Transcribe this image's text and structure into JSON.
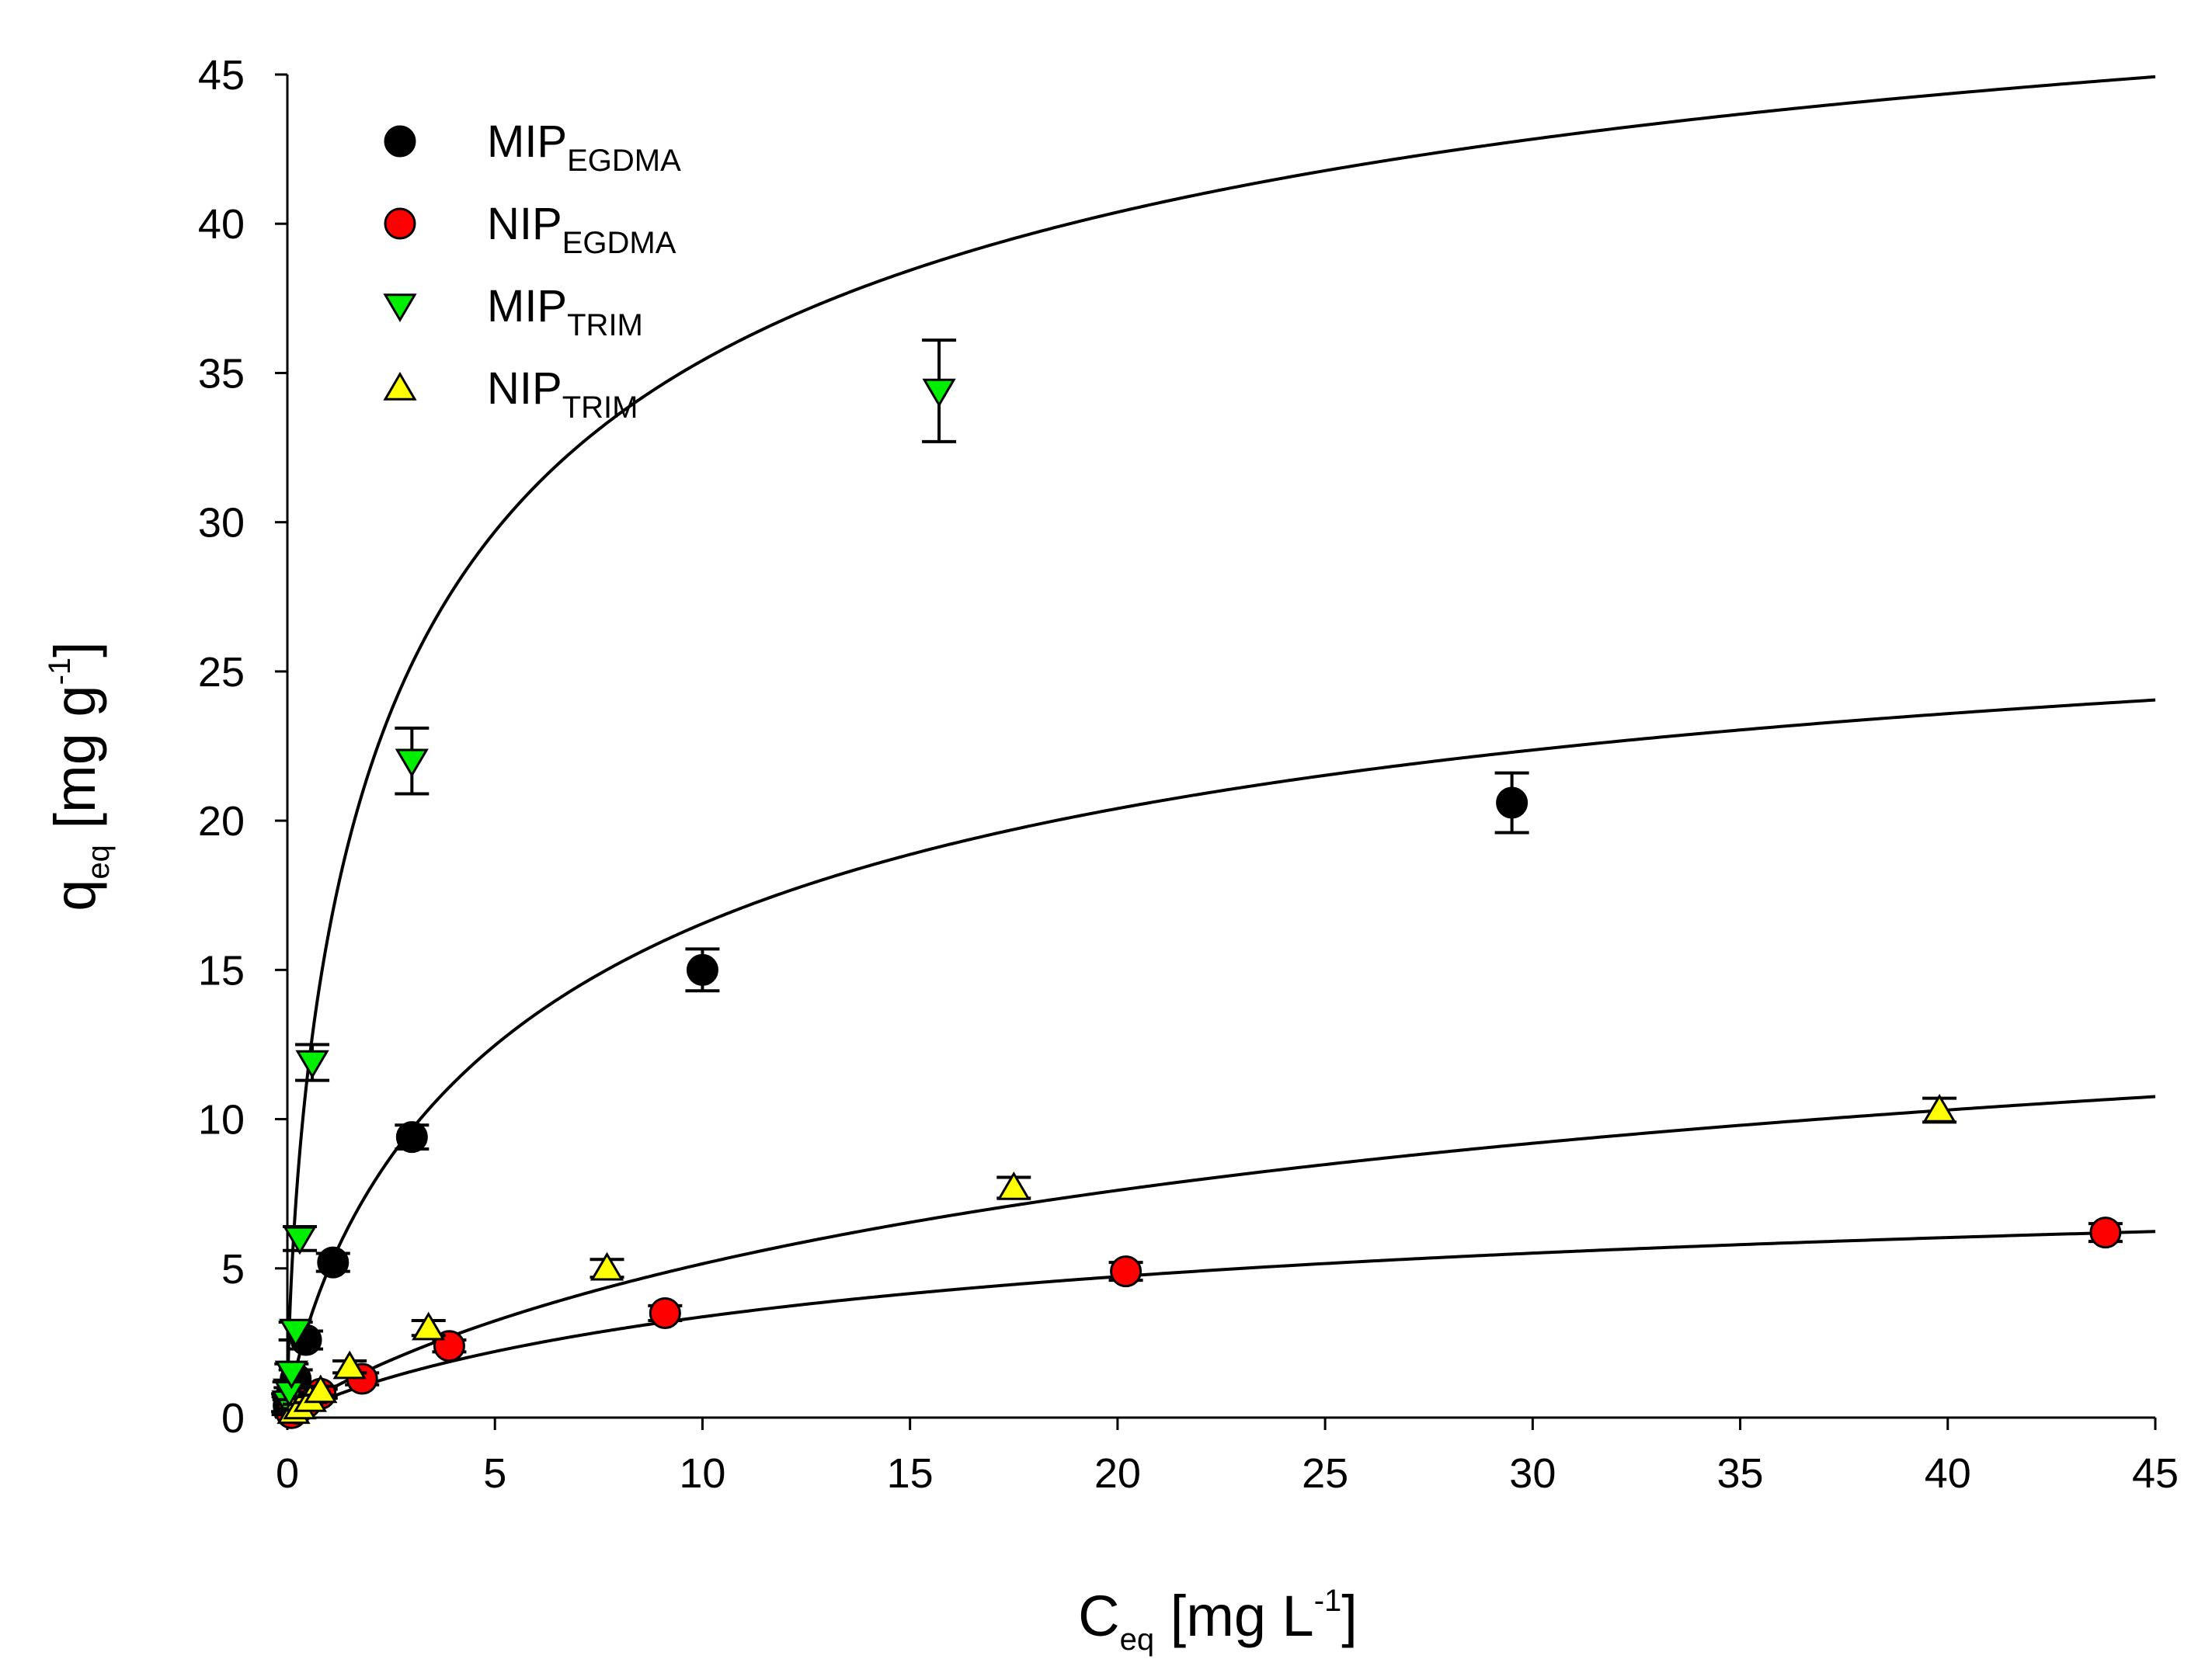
{
  "chart_data": {
    "type": "scatter",
    "title": "",
    "xlabel": {
      "main": "C",
      "sub": "eq",
      "unit_pre": " [mg L",
      "sup": "-1",
      "unit_post": "]"
    },
    "ylabel": {
      "main": "q",
      "sub": "eq",
      "unit_pre": " [mg g",
      "sup": "-1",
      "unit_post": "]"
    },
    "xlim": [
      0,
      45
    ],
    "ylim": [
      0,
      45
    ],
    "xticks": [
      0,
      5,
      10,
      15,
      20,
      25,
      30,
      35,
      40,
      45
    ],
    "yticks": [
      0,
      5,
      10,
      15,
      20,
      25,
      30,
      35,
      40,
      45
    ],
    "grid": false,
    "legend_position": "top-left",
    "series": [
      {
        "name": "MIP",
        "sub": "EGDMA",
        "marker": "circle",
        "color": "#000000",
        "x": [
          0.03,
          0.08,
          0.2,
          0.45,
          1.1,
          3.0,
          10.0,
          29.5
        ],
        "y": [
          0.4,
          0.7,
          1.3,
          2.6,
          5.2,
          9.4,
          15.0,
          20.6
        ],
        "err": [
          0.3,
          0.3,
          0.3,
          0.3,
          0.3,
          0.4,
          0.7,
          1.0
        ],
        "fit": {
          "model": "langmuir-freundlich",
          "qmax": 30.0,
          "K": 0.13,
          "n": 0.79
        }
      },
      {
        "name": "NIP",
        "sub": "EGDMA",
        "marker": "circle",
        "color": "#ff0000",
        "x": [
          0.1,
          0.25,
          0.45,
          0.8,
          1.8,
          3.9,
          9.1,
          20.2,
          43.8
        ],
        "y": [
          0.15,
          0.3,
          0.5,
          0.8,
          1.3,
          2.4,
          3.5,
          4.9,
          6.2
        ],
        "err": [
          0.1,
          0.1,
          0.1,
          0.15,
          0.2,
          0.2,
          0.25,
          0.3,
          0.3
        ],
        "fit": {
          "model": "langmuir-freundlich",
          "qmax": 9.0,
          "K": 0.056,
          "n": 0.88
        }
      },
      {
        "name": "MIP",
        "sub": "TRIM",
        "marker": "triangle-down",
        "color": "#00ee00",
        "x": [
          0.02,
          0.05,
          0.1,
          0.2,
          0.3,
          0.6,
          3.0,
          15.7
        ],
        "y": [
          0.5,
          0.9,
          1.5,
          2.9,
          6.0,
          11.9,
          22.0,
          34.4
        ],
        "err": [
          0.3,
          0.3,
          0.3,
          0.3,
          0.4,
          0.6,
          1.1,
          1.7
        ],
        "fit": {
          "model": "langmuir-freundlich",
          "qmax": 53.6,
          "K": 0.279,
          "n": 0.65
        }
      },
      {
        "name": "NIP",
        "sub": "TRIM",
        "marker": "triangle-up",
        "color": "#ffff00",
        "x": [
          0.15,
          0.3,
          0.55,
          0.8,
          1.5,
          3.4,
          7.7,
          17.5,
          39.8
        ],
        "y": [
          0.2,
          0.35,
          0.6,
          0.9,
          1.7,
          3.0,
          5.0,
          7.7,
          10.3
        ],
        "err": [
          0.1,
          0.1,
          0.1,
          0.15,
          0.2,
          0.25,
          0.3,
          0.35,
          0.4
        ],
        "fit": {
          "model": "langmuir-freundlich",
          "qmax": 18.0,
          "K": 0.035,
          "n": 0.87
        }
      }
    ]
  }
}
